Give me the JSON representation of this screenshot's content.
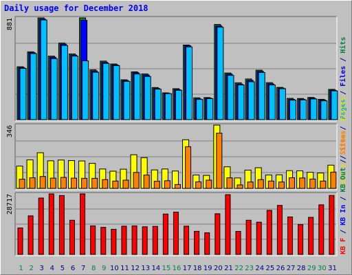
{
  "chart_data": {
    "type": "bar",
    "title": "Daily usage for December 2018",
    "categories": [
      "1",
      "2",
      "3",
      "4",
      "5",
      "6",
      "7",
      "8",
      "9",
      "10",
      "11",
      "12",
      "13",
      "14",
      "15",
      "16",
      "17",
      "18",
      "19",
      "20",
      "21",
      "22",
      "23",
      "24",
      "25",
      "26",
      "27",
      "28",
      "29",
      "30",
      "31"
    ],
    "weekend_days": [
      1,
      2,
      8,
      9,
      15,
      16,
      22,
      23,
      29,
      30
    ],
    "panels": [
      {
        "name": "top",
        "max_label": "881",
        "ymax": 881,
        "legend": [
          {
            "text": "Pages",
            "color": "#00a0e0"
          },
          {
            "text": " / ",
            "color": "#000080"
          },
          {
            "text": "Files",
            "color": "#0000e0"
          },
          {
            "text": " / ",
            "color": "#000080"
          },
          {
            "text": "Hits",
            "color": "#008040"
          }
        ],
        "series": [
          {
            "name": "Hits",
            "color": "#008040",
            "values": [
              458,
              587,
              881,
              550,
              663,
              569,
              881,
              431,
              507,
              482,
              345,
              414,
              396,
              278,
              232,
              268,
              646,
              189,
              191,
              824,
              404,
              319,
              352,
              428,
              320,
              279,
              184,
              183,
              192,
              176,
              262
            ]
          },
          {
            "name": "Files",
            "color": "#0000ff",
            "values": [
              450,
              580,
              871,
              540,
              654,
              559,
              860,
              421,
              496,
              474,
              338,
              406,
              386,
              270,
              227,
              260,
              640,
              180,
              186,
              811,
              394,
              308,
              340,
              418,
              310,
              273,
              175,
              176,
              186,
              170,
              255
            ]
          },
          {
            "name": "Pages",
            "color": "#00c0ff",
            "values": [
              443,
              572,
              863,
              528,
              642,
              550,
              509,
              410,
              486,
              468,
              331,
              395,
              374,
              264,
              225,
              254,
              630,
              175,
              182,
              800,
              383,
              300,
              328,
              408,
              300,
              268,
              169,
              171,
              179,
              163,
              249
            ]
          }
        ]
      },
      {
        "name": "middle",
        "max_label": "346",
        "ymax": 346,
        "legend": [
          {
            "text": "Visits",
            "color": "#e0e000"
          },
          {
            "text": " / ",
            "color": "#000080"
          },
          {
            "text": "Sites",
            "color": "#ff8000"
          }
        ],
        "series": [
          {
            "name": "Visits",
            "color": "#ffff00",
            "values": [
              122,
              156,
              195,
              151,
              155,
              152,
              150,
              137,
              106,
              94,
              105,
              184,
              168,
              101,
              106,
              95,
              266,
              73,
              71,
              346,
              118,
              57,
              100,
              113,
              73,
              74,
              97,
              96,
              88,
              84,
              127
            ]
          },
          {
            "name": "Sites",
            "color": "#ff8000",
            "values": [
              50,
              58,
              65,
              56,
              60,
              56,
              55,
              55,
              48,
              40,
              45,
              87,
              73,
              39,
              42,
              21,
              228,
              36,
              45,
              302,
              58,
              19,
              35,
              48,
              40,
              35,
              58,
              57,
              51,
              40,
              89
            ]
          }
        ]
      },
      {
        "name": "bottom",
        "max_label": "28717",
        "ymax": 28717,
        "legend": [
          {
            "text": "KB F",
            "color": "#ff0000"
          },
          {
            "text": " / ",
            "color": "#000080"
          },
          {
            "text": "KB In",
            "color": "#0000ff"
          },
          {
            "text": " / ",
            "color": "#000080"
          },
          {
            "text": "KB Out",
            "color": "#008040"
          },
          {
            "text": " / ",
            "color": "#000080"
          },
          {
            "text": "Sites",
            "color": "#ff8000"
          },
          {
            "text": " / ",
            "color": "#000080"
          },
          {
            "text": "Visits",
            "color": "#e0e000"
          }
        ],
        "series": [
          {
            "name": "KB F",
            "color": "#ff0000",
            "values": [
              12551,
              18294,
              26750,
              28717,
              27938,
              16213,
              28717,
              13532,
              12826,
              11919,
              13389,
              13532,
              13115,
              13294,
              19153,
              20069,
              13399,
              10964,
              10245,
              19293,
              28350,
              10922,
              16213,
              15287,
              20905,
              23250,
              17751,
              14138,
              17591,
              23534,
              27978
            ]
          }
        ]
      }
    ]
  },
  "palette": {
    "background": "#c0c0c0",
    "plot_area": "#c0c0c0",
    "gridline": "#808080",
    "weekday_label": "#000080",
    "weekend_label": "#00804e"
  }
}
